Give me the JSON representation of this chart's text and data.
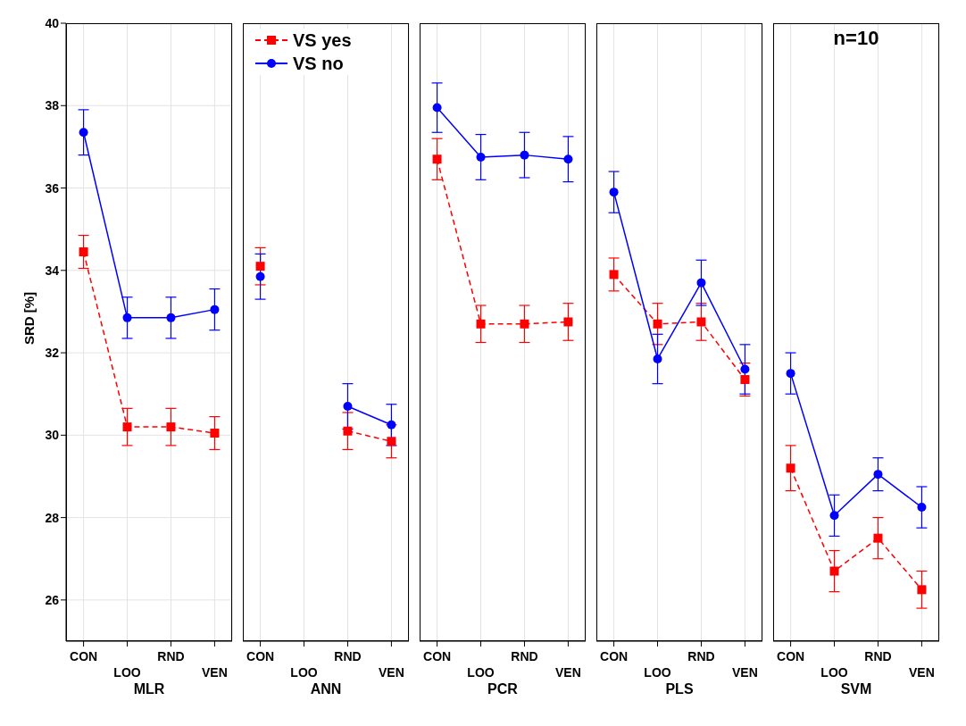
{
  "chart_data": [
    {
      "type": "line",
      "xlabel": "MLR",
      "ylabel": "SRD [%]",
      "categories": [
        "CON",
        "LOO",
        "RND",
        "VEN"
      ],
      "ylim": [
        25,
        40
      ],
      "yticks": [
        26,
        28,
        30,
        32,
        34,
        36,
        38,
        40
      ],
      "grid": true,
      "legend": false,
      "series": [
        {
          "color": "#ff0000",
          "marker": "square",
          "line_style": "dashed",
          "values": [
            34.45,
            30.2,
            30.2,
            30.05
          ],
          "errors": [
            0.4,
            0.45,
            0.45,
            0.4
          ]
        },
        {
          "color": "#0000ff",
          "marker": "circle",
          "line_style": "solid",
          "values": [
            37.35,
            32.85,
            32.85,
            33.05
          ],
          "errors": [
            0.55,
            0.5,
            0.5,
            0.5
          ]
        }
      ]
    },
    {
      "type": "line",
      "xlabel": "ANN",
      "categories": [
        "CON",
        "LOO",
        "RND",
        "VEN"
      ],
      "ylim": [
        25,
        40
      ],
      "yticks": [
        26,
        28,
        30,
        32,
        34,
        36,
        38,
        40
      ],
      "tick_labels": "x",
      "grid": true,
      "legend": "top left",
      "series": [
        {
          "name": "VS yes",
          "color": "#ff0000",
          "marker": "square",
          "line_style": "dashed",
          "values": [
            34.1,
            null,
            30.1,
            29.85
          ],
          "errors": [
            0.45,
            null,
            0.45,
            0.4
          ]
        },
        {
          "name": "VS no",
          "color": "#0000ff",
          "marker": "circle",
          "line_style": "solid",
          "values": [
            33.85,
            null,
            30.7,
            30.25
          ],
          "errors": [
            0.55,
            null,
            0.55,
            0.5
          ]
        }
      ]
    },
    {
      "type": "line",
      "xlabel": "PCR",
      "categories": [
        "CON",
        "LOO",
        "RND",
        "VEN"
      ],
      "ylim": [
        25,
        40
      ],
      "yticks": [
        26,
        28,
        30,
        32,
        34,
        36,
        38,
        40
      ],
      "tick_labels": "x",
      "grid": true,
      "legend": false,
      "series": [
        {
          "color": "#ff0000",
          "marker": "square",
          "line_style": "dashed",
          "values": [
            36.7,
            32.7,
            32.7,
            32.75
          ],
          "errors": [
            0.5,
            0.45,
            0.45,
            0.45
          ]
        },
        {
          "color": "#0000ff",
          "marker": "circle",
          "line_style": "solid",
          "values": [
            37.95,
            36.75,
            36.8,
            36.7
          ],
          "errors": [
            0.6,
            0.55,
            0.55,
            0.55
          ]
        }
      ]
    },
    {
      "type": "line",
      "xlabel": "PLS",
      "categories": [
        "CON",
        "LOO",
        "RND",
        "VEN"
      ],
      "ylim": [
        25,
        40
      ],
      "yticks": [
        26,
        28,
        30,
        32,
        34,
        36,
        38,
        40
      ],
      "tick_labels": "x",
      "grid": true,
      "legend": false,
      "series": [
        {
          "color": "#ff0000",
          "marker": "square",
          "line_style": "dashed",
          "values": [
            33.9,
            32.7,
            32.75,
            31.35
          ],
          "errors": [
            0.4,
            0.5,
            0.45,
            0.4
          ]
        },
        {
          "color": "#0000ff",
          "marker": "circle",
          "line_style": "solid",
          "values": [
            35.9,
            31.85,
            33.7,
            31.6
          ],
          "errors": [
            0.5,
            0.6,
            0.55,
            0.6
          ]
        }
      ]
    },
    {
      "type": "line",
      "title": "n=10",
      "xlabel": "SVM",
      "categories": [
        "CON",
        "LOO",
        "RND",
        "VEN"
      ],
      "ylim": [
        25,
        40
      ],
      "yticks": [
        26,
        28,
        30,
        32,
        34,
        36,
        38,
        40
      ],
      "tick_labels": "x",
      "grid": true,
      "legend": false,
      "series": [
        {
          "color": "#ff0000",
          "marker": "square",
          "line_style": "dashed",
          "values": [
            29.2,
            26.7,
            27.5,
            26.25
          ],
          "errors": [
            0.55,
            0.5,
            0.5,
            0.45
          ]
        },
        {
          "color": "#0000ff",
          "marker": "circle",
          "line_style": "solid",
          "values": [
            31.5,
            28.05,
            29.05,
            28.25
          ],
          "errors": [
            0.5,
            0.5,
            0.4,
            0.5
          ]
        }
      ]
    }
  ]
}
